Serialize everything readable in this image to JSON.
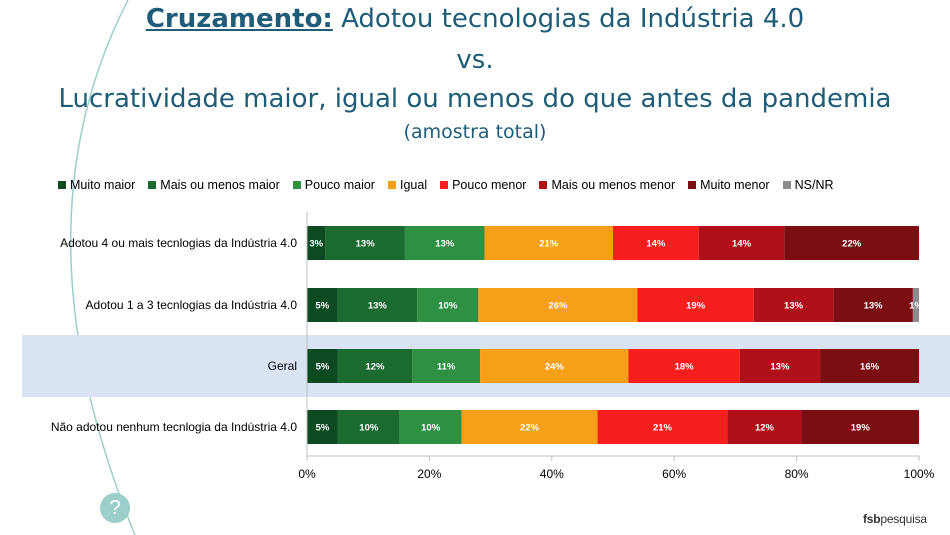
{
  "header": {
    "title_keyword": "Cruzamento:",
    "title_rest": " Adotou tecnologias da Indústria 4.0",
    "line2": "vs.",
    "line3": "Lucratividade maior, igual ou menos do que antes da pandemia",
    "line4": "(amostra total)"
  },
  "brand": {
    "part1": "fsb",
    "part2": "pesquisa"
  },
  "help_icon": "question-mark-icon",
  "chart_data": {
    "type": "bar",
    "orientation": "horizontal",
    "stacked": "percent",
    "categories": [
      "Adotou 4 ou mais tecnlogias da Indústria 4.0",
      "Adotou 1 a 3 tecnlogias da Indústria 4.0",
      "Geral",
      "Não adotou nenhum tecnlogia da Indústria 4.0"
    ],
    "highlight_category": "Geral",
    "highlight_color": "#dae3f3",
    "series": [
      {
        "name": "Muito maior",
        "color": "#0d4a22",
        "values": [
          3,
          5,
          5,
          5
        ],
        "labels": [
          "3%",
          "5%",
          "5%",
          "5%"
        ]
      },
      {
        "name": "Mais ou menos maior",
        "color": "#1b6b30",
        "values": [
          13,
          13,
          12,
          10
        ],
        "labels": [
          "13%",
          "13%",
          "12%",
          "10%"
        ]
      },
      {
        "name": "Pouco maior",
        "color": "#2f9043",
        "values": [
          13,
          10,
          11,
          10
        ],
        "labels": [
          "13%",
          "10%",
          "11%",
          "10%"
        ]
      },
      {
        "name": "Igual",
        "color": "#f6a01a",
        "values": [
          21,
          26,
          24,
          22
        ],
        "labels": [
          "21%",
          "26%",
          "24%",
          "22%"
        ]
      },
      {
        "name": "Pouco menor",
        "color": "#f71e1e",
        "values": [
          14,
          19,
          18,
          21
        ],
        "labels": [
          "14%",
          "19%",
          "18%",
          "21%"
        ]
      },
      {
        "name": "Mais ou menos menor",
        "color": "#b0101a",
        "values": [
          14,
          13,
          13,
          12
        ],
        "labels": [
          "14%",
          "13%",
          "13%",
          "12%"
        ]
      },
      {
        "name": "Muito menor",
        "color": "#7a0e12",
        "values": [
          22,
          13,
          16,
          19
        ],
        "labels": [
          "22%",
          "13%",
          "16%",
          "19%"
        ]
      },
      {
        "name": "NS/NR",
        "color": "#8c8c8c",
        "values": [
          0,
          1,
          0,
          0
        ],
        "labels": [
          "",
          "1%",
          "",
          ""
        ]
      }
    ],
    "x_ticks": [
      "0%",
      "20%",
      "40%",
      "60%",
      "80%",
      "100%"
    ],
    "xlim": [
      0,
      100
    ],
    "legend_position": "top",
    "grid": false
  }
}
